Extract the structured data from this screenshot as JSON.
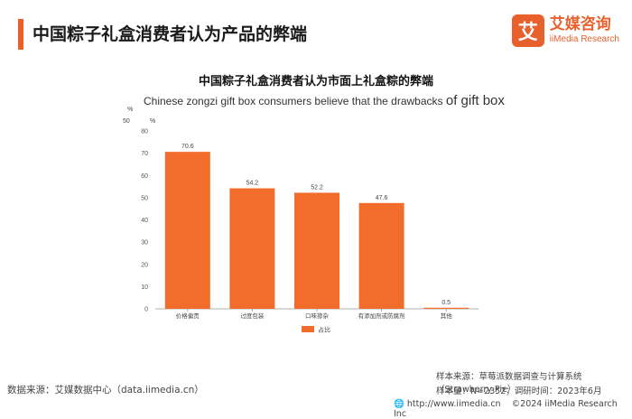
{
  "header": {
    "title": "中国粽子礼盒消费者认为产品的弊端",
    "brand_logo_char": "艾",
    "brand_cn": "艾媒咨询",
    "brand_en": "iiMedia Research",
    "accent_color": "#e8612c"
  },
  "chart_data": {
    "type": "bar",
    "title": "中国粽子礼盒消费者认为市面上礼盒粽的弊端",
    "subtitle_prefix": "Chinese zongzi gift box consumers believe that the drawbacks ",
    "subtitle_suffix": "of gift box",
    "stray_tick_label": "50",
    "unit_label_outer": "%",
    "unit_label_inner": "%",
    "categories": [
      "价格偏贵",
      "过度包装",
      "口味掺杂",
      "有添加剂或防腐剂",
      "其他"
    ],
    "series": [
      {
        "name": "占比",
        "values": [
          70.6,
          54.2,
          52.2,
          47.6,
          0.5
        ],
        "color": "#f26d2b"
      }
    ],
    "value_labels": [
      "70.6",
      "54.2",
      "52.2",
      "47.6",
      "0.5"
    ],
    "ylim": [
      0,
      80
    ],
    "yticks": [
      "0",
      "10",
      "20",
      "30",
      "40",
      "50",
      "60",
      "70",
      "80"
    ],
    "grid": false,
    "legend_position": "bottom"
  },
  "footer": {
    "source_left": "数据来源：艾媒数据中心（data.iimedia.cn）",
    "sample_source": "样本来源：草莓派数据调查与计算系统（Strawberry Pie）",
    "sample_size": "样本量：N=2352；调研时间：2023年6月",
    "website": "http://www.iimedia.cn",
    "copyright": "©2024  iiMedia Research  Inc"
  }
}
